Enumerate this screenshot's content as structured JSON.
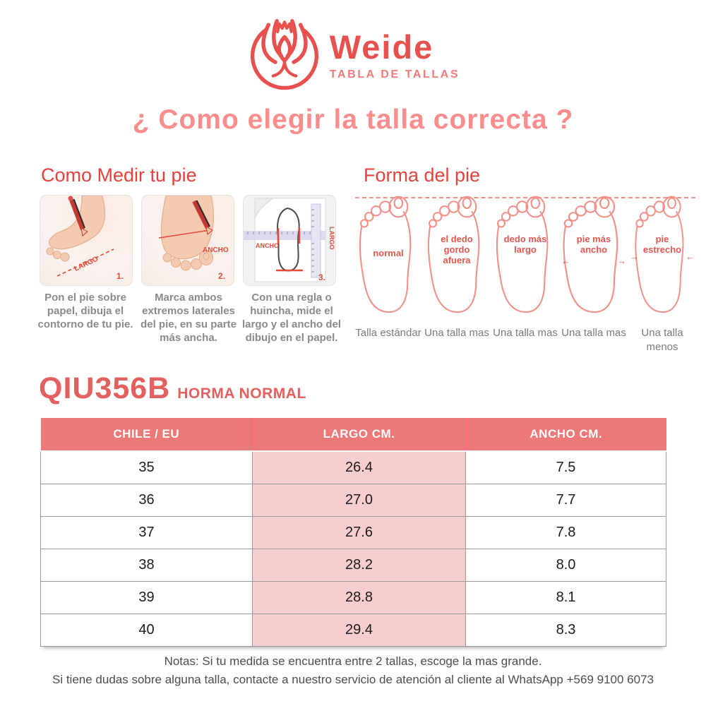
{
  "brand": {
    "name": "Weide",
    "tagline": "TABLA DE TALLAS",
    "logo_icon": "lotus-crown-icon"
  },
  "title": "¿ Como elegir la talla correcta ?",
  "measure": {
    "heading": "Como Medir tu pie",
    "steps": [
      {
        "number": "1.",
        "labels": [
          "LARGO"
        ],
        "caption": "Pon el pie sobre papel, dibuja el contorno de tu pie."
      },
      {
        "number": "2.",
        "labels": [
          "ANCHO"
        ],
        "caption": "Marca ambos extremos laterales del pie, en su parte más ancha."
      },
      {
        "number": "3.",
        "labels": [
          "ANCHO",
          "LARGO"
        ],
        "caption": "Con una regla o huincha, mide el largo y el ancho del dibujo en el papel."
      }
    ]
  },
  "foot_shapes": {
    "heading": "Forma del pie",
    "items": [
      {
        "label": "normal",
        "caption": "Talla estándar",
        "arrows": "none"
      },
      {
        "label": "el dedo gordo afuera",
        "caption": "Una talla mas",
        "arrows": "none"
      },
      {
        "label": "dedo más largo",
        "caption": "Una talla mas",
        "arrows": "none"
      },
      {
        "label": "pie más ancho",
        "caption": "Una talla mas",
        "arrows": "out"
      },
      {
        "label": "pie estrecho",
        "caption": "Una talla menos",
        "arrows": "in"
      }
    ]
  },
  "product": {
    "code": "QIU356B",
    "fit": "HORMA NORMAL"
  },
  "size_table": {
    "headers": [
      "CHILE / EU",
      "LARGO CM.",
      "ANCHO CM."
    ],
    "highlight_column": 1,
    "rows": [
      [
        "35",
        "26.4",
        "7.5"
      ],
      [
        "36",
        "27.0",
        "7.7"
      ],
      [
        "37",
        "27.6",
        "7.8"
      ],
      [
        "38",
        "28.2",
        "8.0"
      ],
      [
        "39",
        "28.8",
        "8.1"
      ],
      [
        "40",
        "29.4",
        "8.3"
      ]
    ]
  },
  "notes": {
    "line1": "Notas: Si tu medida se encuentra entre 2 tallas, escoge la mas grande.",
    "line2": "Si tiene dudas sobre alguna talla, contacte a nuestro servicio de atención al cliente al WhatsApp +569 9100 6073"
  },
  "colors": {
    "accent_red": "#e8413b",
    "title_pink": "#f98c8c",
    "brand_red": "#e8504e",
    "tagline_pink": "#ef7a78",
    "product_red": "#e2605e",
    "foot_outline": "#f0928a",
    "foot_label_red": "#e4574e",
    "caption_gray": "#8a8a8a",
    "notes_gray": "#4d4d4d",
    "table_header_bg": "#ed7878",
    "table_highlight_bg": "#f7cdcd",
    "table_border": "#9a9a9a"
  }
}
